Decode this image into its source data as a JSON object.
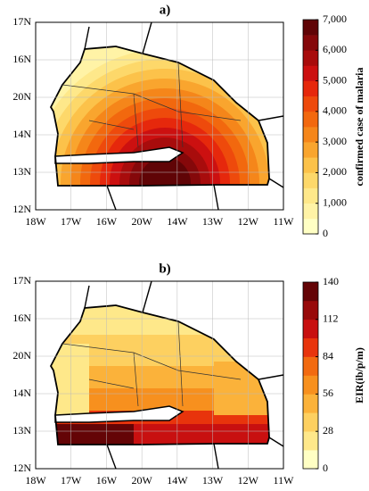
{
  "panels": [
    {
      "label": "a)",
      "y_labels": [
        "17N",
        "16N",
        "20N",
        "14N",
        "13N",
        "12N"
      ],
      "x_labels": [
        "18W",
        "17W",
        "16W",
        "20W",
        "14W",
        "13W",
        "12W",
        "11W"
      ],
      "colorbar": {
        "title": "confirmed case of malaria",
        "ticks": [
          "0",
          "1,000",
          "2,000",
          "3,000",
          "4,000",
          "5,000",
          "6,000",
          "7,000"
        ],
        "colors": [
          "#ffffc4",
          "#fff3a6",
          "#fee88a",
          "#fdd86a",
          "#fcc24a",
          "#f9a52e",
          "#f5861a",
          "#f2680e",
          "#ee4a0c",
          "#e6280c",
          "#cc1010",
          "#a80c0c",
          "#85080a",
          "#600406"
        ]
      }
    },
    {
      "label": "b)",
      "y_labels": [
        "17N",
        "16N",
        "20N",
        "14N",
        "13N",
        "12N"
      ],
      "x_labels": [
        "18W",
        "17W",
        "16W",
        "20W",
        "14W",
        "13W",
        "12W",
        "11W"
      ],
      "colorbar": {
        "title": "EIR(ib/p/m)",
        "ticks": [
          "0",
          "28",
          "56",
          "84",
          "112",
          "140"
        ],
        "colors": [
          "#ffffc4",
          "#fee88a",
          "#fdd060",
          "#fbb23a",
          "#f7901e",
          "#f26a10",
          "#e8340c",
          "#c81010",
          "#980a0a",
          "#640406"
        ]
      }
    }
  ]
}
